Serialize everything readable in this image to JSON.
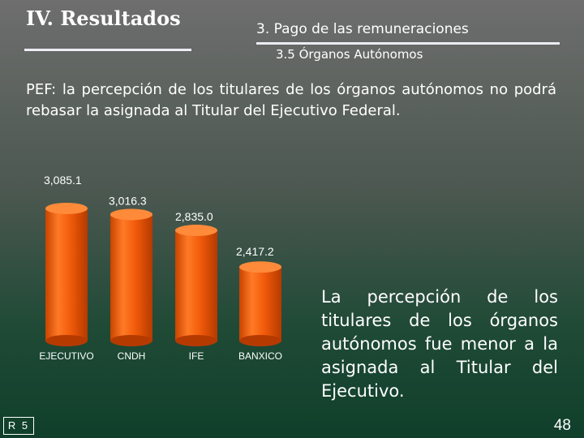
{
  "header": {
    "title": "IV. Resultados",
    "subtitle1": "3. Pago de las remuneraciones",
    "subtitle2": "3.5 Órganos Autónomos"
  },
  "intro_text": "PEF: la percepción de los titulares de los órganos autónomos no podrá rebasar la asignada al Titular del Ejecutivo Federal.",
  "note_text": "La percepción de los titulares de los órganos autónomos fue menor a la asignada al Titular del Ejecutivo.",
  "footer": {
    "slide_code": "R 5",
    "page_number": "48"
  },
  "colors": {
    "bar": "#f05a0a",
    "bar_light": "#ff8a3a",
    "bar_dark": "#b53a00"
  },
  "chart_data": {
    "type": "bar",
    "categories": [
      "EJECUTIVO",
      "CNDH",
      "IFE",
      "BANXICO"
    ],
    "values": [
      3085.1,
      3016.3,
      2835.0,
      2417.2
    ],
    "value_labels": [
      "3,085.1",
      "3,016.3",
      "2,835.0",
      "2,417.2"
    ],
    "title": "",
    "xlabel": "",
    "ylabel": "",
    "grid": false,
    "legend": false
  }
}
